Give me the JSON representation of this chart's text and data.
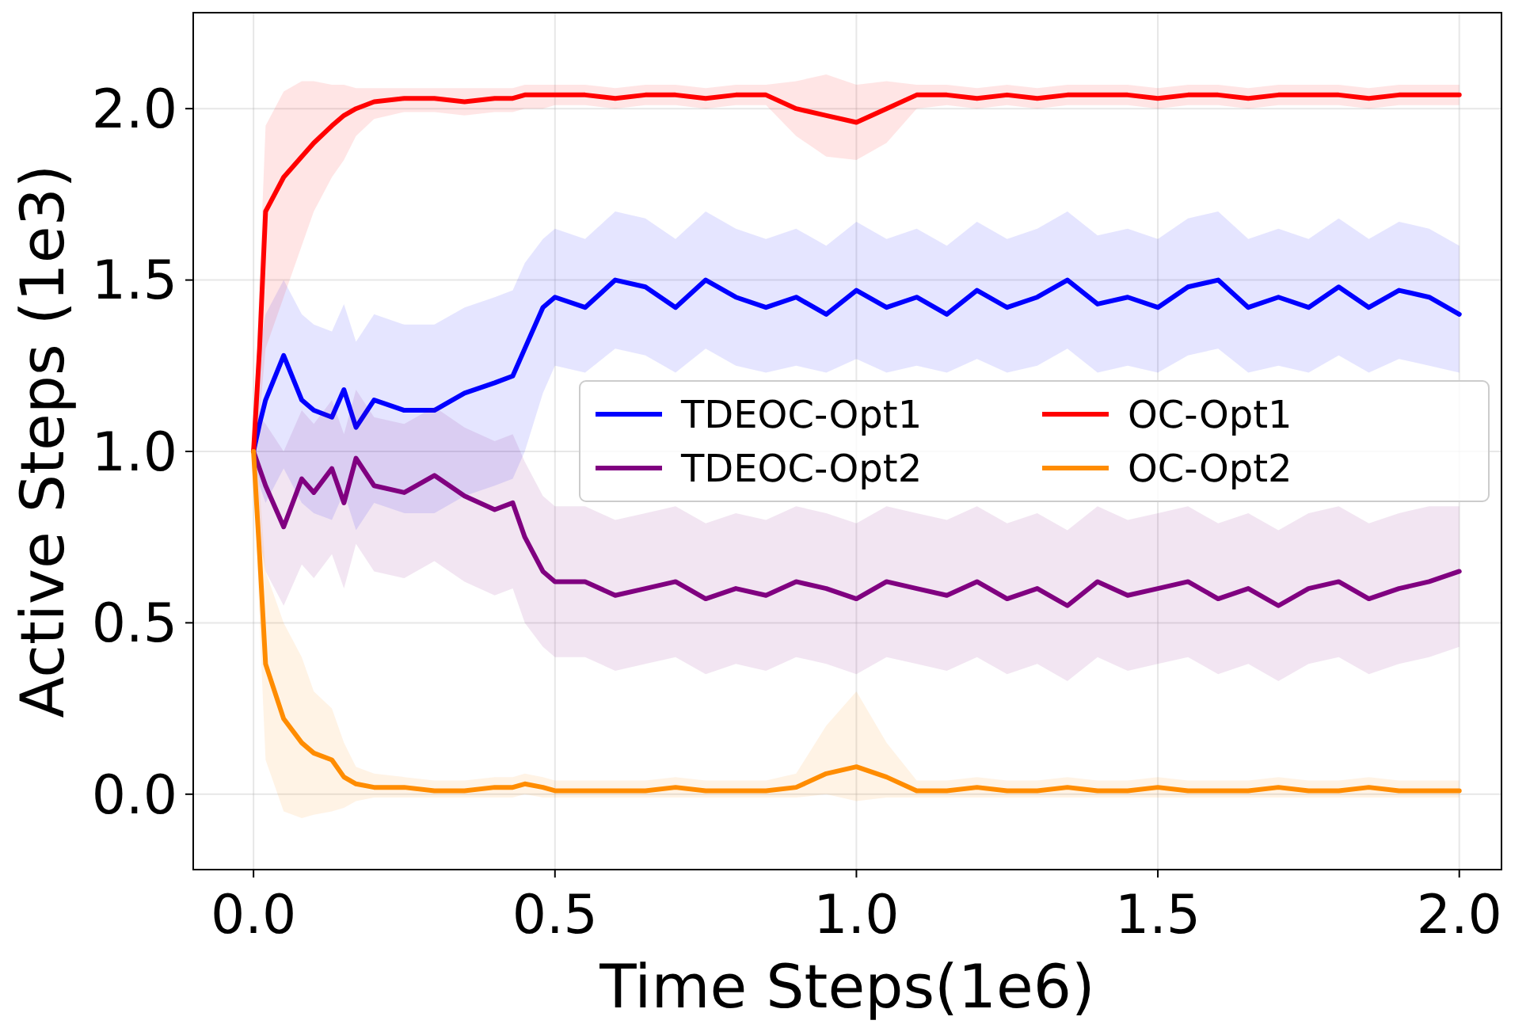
{
  "chart_data": {
    "type": "line",
    "xlabel": "Time Steps(1e6)",
    "ylabel": "Active Steps (1e3)",
    "grid": true,
    "legend": "right",
    "line_style": "solid",
    "marker": "none",
    "xlim": [
      -0.1,
      2.07
    ],
    "ylim": [
      -0.22,
      2.28
    ],
    "xticks": [
      {
        "value": 0,
        "label": "0.0"
      },
      {
        "value": 0.5,
        "label": "0.5"
      },
      {
        "value": 1,
        "label": "1.0"
      },
      {
        "value": 1.5,
        "label": "1.5"
      },
      {
        "value": 2,
        "label": "2.0"
      }
    ],
    "yticks": [
      {
        "value": 0,
        "label": "0.0"
      },
      {
        "value": 0.5,
        "label": "0.5"
      },
      {
        "value": 1,
        "label": "1.0"
      },
      {
        "value": 1.5,
        "label": "1.5"
      },
      {
        "value": 2,
        "label": "2.0"
      }
    ],
    "x": [
      0,
      0.01,
      0.02,
      0.05,
      0.08,
      0.1,
      0.13,
      0.15,
      0.17,
      0.2,
      0.25,
      0.3,
      0.35,
      0.4,
      0.43,
      0.45,
      0.48,
      0.5,
      0.55,
      0.6,
      0.65,
      0.7,
      0.75,
      0.8,
      0.85,
      0.9,
      0.95,
      1.0,
      1.05,
      1.1,
      1.15,
      1.2,
      1.25,
      1.3,
      1.35,
      1.4,
      1.45,
      1.5,
      1.55,
      1.6,
      1.65,
      1.7,
      1.75,
      1.8,
      1.85,
      1.9,
      1.95,
      2.0
    ],
    "series": [
      {
        "name": "TDEOC-Opt1",
        "color": "#0000ff",
        "values": [
          1.0,
          1.08,
          1.15,
          1.28,
          1.15,
          1.12,
          1.1,
          1.18,
          1.07,
          1.15,
          1.12,
          1.12,
          1.17,
          1.2,
          1.22,
          1.3,
          1.42,
          1.45,
          1.42,
          1.5,
          1.48,
          1.42,
          1.5,
          1.45,
          1.42,
          1.45,
          1.4,
          1.47,
          1.42,
          1.45,
          1.4,
          1.47,
          1.42,
          1.45,
          1.5,
          1.43,
          1.45,
          1.42,
          1.48,
          1.5,
          1.42,
          1.45,
          1.42,
          1.48,
          1.42,
          1.47,
          1.45,
          1.4
        ],
        "lower": [
          1.0,
          0.9,
          0.85,
          0.95,
          0.85,
          0.82,
          0.8,
          0.88,
          0.77,
          0.85,
          0.82,
          0.82,
          0.87,
          0.9,
          0.92,
          1.0,
          1.17,
          1.25,
          1.23,
          1.3,
          1.28,
          1.23,
          1.3,
          1.25,
          1.23,
          1.25,
          1.23,
          1.27,
          1.23,
          1.25,
          1.23,
          1.27,
          1.23,
          1.25,
          1.3,
          1.23,
          1.25,
          1.23,
          1.28,
          1.3,
          1.23,
          1.25,
          1.23,
          1.28,
          1.23,
          1.27,
          1.25,
          1.23
        ],
        "upper": [
          1.0,
          1.3,
          1.4,
          1.5,
          1.4,
          1.37,
          1.35,
          1.43,
          1.32,
          1.4,
          1.37,
          1.37,
          1.42,
          1.45,
          1.47,
          1.55,
          1.62,
          1.65,
          1.62,
          1.7,
          1.68,
          1.62,
          1.7,
          1.65,
          1.62,
          1.65,
          1.6,
          1.67,
          1.62,
          1.65,
          1.6,
          1.67,
          1.62,
          1.65,
          1.7,
          1.63,
          1.65,
          1.62,
          1.68,
          1.7,
          1.62,
          1.65,
          1.62,
          1.68,
          1.62,
          1.67,
          1.65,
          1.6
        ]
      },
      {
        "name": "TDEOC-Opt2",
        "color": "#800080",
        "values": [
          1.0,
          0.95,
          0.9,
          0.78,
          0.92,
          0.88,
          0.95,
          0.85,
          0.98,
          0.9,
          0.88,
          0.93,
          0.87,
          0.83,
          0.85,
          0.75,
          0.65,
          0.62,
          0.62,
          0.58,
          0.6,
          0.62,
          0.57,
          0.6,
          0.58,
          0.62,
          0.6,
          0.57,
          0.62,
          0.6,
          0.58,
          0.62,
          0.57,
          0.6,
          0.55,
          0.62,
          0.58,
          0.6,
          0.62,
          0.57,
          0.6,
          0.55,
          0.6,
          0.62,
          0.57,
          0.6,
          0.62,
          0.65
        ],
        "lower": [
          1.0,
          0.75,
          0.65,
          0.55,
          0.67,
          0.63,
          0.7,
          0.6,
          0.73,
          0.65,
          0.63,
          0.68,
          0.62,
          0.58,
          0.6,
          0.5,
          0.43,
          0.4,
          0.4,
          0.36,
          0.38,
          0.4,
          0.35,
          0.38,
          0.36,
          0.4,
          0.38,
          0.35,
          0.4,
          0.38,
          0.36,
          0.4,
          0.35,
          0.38,
          0.33,
          0.4,
          0.36,
          0.38,
          0.4,
          0.35,
          0.38,
          0.33,
          0.38,
          0.4,
          0.35,
          0.38,
          0.4,
          0.43
        ],
        "upper": [
          1.0,
          1.1,
          1.08,
          1.0,
          1.12,
          1.08,
          1.15,
          1.05,
          1.18,
          1.1,
          1.08,
          1.13,
          1.07,
          1.03,
          1.05,
          0.97,
          0.87,
          0.84,
          0.84,
          0.8,
          0.82,
          0.84,
          0.79,
          0.82,
          0.8,
          0.84,
          0.82,
          0.79,
          0.84,
          0.82,
          0.8,
          0.84,
          0.79,
          0.82,
          0.77,
          0.84,
          0.8,
          0.82,
          0.84,
          0.79,
          0.82,
          0.77,
          0.82,
          0.84,
          0.79,
          0.82,
          0.84,
          0.84
        ]
      },
      {
        "name": "OC-Opt1",
        "color": "#ff0000",
        "values": [
          1.0,
          1.3,
          1.7,
          1.8,
          1.86,
          1.9,
          1.95,
          1.98,
          2.0,
          2.02,
          2.03,
          2.03,
          2.02,
          2.03,
          2.03,
          2.04,
          2.04,
          2.04,
          2.04,
          2.03,
          2.04,
          2.04,
          2.03,
          2.04,
          2.04,
          2.0,
          1.98,
          1.96,
          2.0,
          2.04,
          2.04,
          2.03,
          2.04,
          2.03,
          2.04,
          2.04,
          2.04,
          2.03,
          2.04,
          2.04,
          2.03,
          2.04,
          2.04,
          2.04,
          2.03,
          2.04,
          2.04,
          2.04
        ],
        "lower": [
          1.0,
          1.1,
          1.3,
          1.45,
          1.6,
          1.7,
          1.8,
          1.85,
          1.92,
          1.97,
          1.99,
          1.99,
          1.98,
          1.99,
          1.99,
          2.0,
          2.0,
          2.01,
          2.01,
          2.0,
          2.01,
          2.01,
          2.0,
          2.01,
          2.01,
          1.92,
          1.86,
          1.85,
          1.9,
          2.0,
          2.01,
          2.0,
          2.01,
          2.0,
          2.01,
          2.01,
          2.01,
          2.0,
          2.01,
          2.01,
          2.0,
          2.01,
          2.01,
          2.01,
          2.0,
          2.01,
          2.01,
          2.01
        ],
        "upper": [
          1.0,
          1.5,
          1.95,
          2.05,
          2.08,
          2.08,
          2.07,
          2.07,
          2.06,
          2.06,
          2.06,
          2.06,
          2.06,
          2.06,
          2.06,
          2.07,
          2.07,
          2.07,
          2.07,
          2.06,
          2.07,
          2.07,
          2.06,
          2.07,
          2.07,
          2.08,
          2.1,
          2.07,
          2.08,
          2.07,
          2.07,
          2.06,
          2.07,
          2.06,
          2.07,
          2.07,
          2.07,
          2.06,
          2.07,
          2.07,
          2.06,
          2.07,
          2.07,
          2.07,
          2.06,
          2.07,
          2.07,
          2.07
        ]
      },
      {
        "name": "OC-Opt2",
        "color": "#ff8c00",
        "values": [
          1.0,
          0.7,
          0.38,
          0.22,
          0.15,
          0.12,
          0.1,
          0.05,
          0.03,
          0.02,
          0.02,
          0.01,
          0.01,
          0.02,
          0.02,
          0.03,
          0.02,
          0.01,
          0.01,
          0.01,
          0.01,
          0.02,
          0.01,
          0.01,
          0.01,
          0.02,
          0.06,
          0.08,
          0.05,
          0.01,
          0.01,
          0.02,
          0.01,
          0.01,
          0.02,
          0.01,
          0.01,
          0.02,
          0.01,
          0.01,
          0.01,
          0.02,
          0.01,
          0.01,
          0.02,
          0.01,
          0.01,
          0.01
        ],
        "lower": [
          1.0,
          0.5,
          0.1,
          -0.05,
          -0.07,
          -0.06,
          -0.05,
          -0.04,
          -0.02,
          -0.01,
          -0.01,
          -0.01,
          -0.01,
          -0.01,
          -0.01,
          0,
          -0.01,
          -0.01,
          -0.01,
          -0.01,
          -0.01,
          -0.01,
          -0.01,
          -0.01,
          -0.01,
          -0.01,
          0.0,
          -0.02,
          -0.01,
          -0.01,
          -0.01,
          -0.01,
          -0.01,
          -0.01,
          -0.01,
          -0.01,
          -0.01,
          -0.01,
          -0.01,
          -0.01,
          -0.01,
          -0.01,
          -0.01,
          -0.01,
          -0.01,
          -0.01,
          -0.01,
          -0.01
        ],
        "upper": [
          1.0,
          0.9,
          0.65,
          0.5,
          0.4,
          0.3,
          0.25,
          0.15,
          0.08,
          0.06,
          0.05,
          0.04,
          0.04,
          0.05,
          0.05,
          0.06,
          0.05,
          0.04,
          0.04,
          0.04,
          0.04,
          0.05,
          0.04,
          0.04,
          0.04,
          0.06,
          0.2,
          0.3,
          0.15,
          0.04,
          0.04,
          0.05,
          0.04,
          0.04,
          0.05,
          0.04,
          0.04,
          0.05,
          0.04,
          0.04,
          0.04,
          0.05,
          0.04,
          0.04,
          0.05,
          0.04,
          0.04,
          0.04
        ]
      }
    ]
  }
}
